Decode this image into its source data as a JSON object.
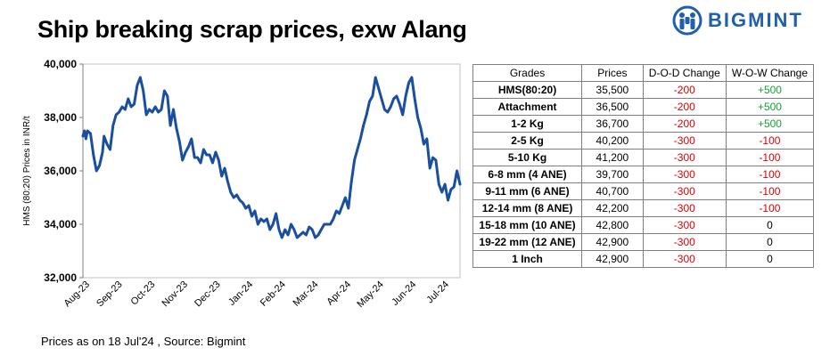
{
  "header": {
    "title": "Ship breaking scrap prices, exw Alang",
    "brand": "BIGMINT"
  },
  "footer": {
    "note": "Prices as on 18 Jul'24 , Source:  Bigmint"
  },
  "colors": {
    "line": "#1a4fa0",
    "brand": "#1f5fae",
    "negative": "#e00000",
    "positive": "#16a03c"
  },
  "chart_data": {
    "type": "line",
    "ylabel": "HMS (80:20) Prices in INR/t",
    "xlabel": "",
    "ylim": [
      32000,
      40000
    ],
    "yticks": [
      "32,000",
      "34,000",
      "36,000",
      "38,000",
      "40,000"
    ],
    "xticks": [
      "Aug-23",
      "Sep-23",
      "Oct-23",
      "Nov-23",
      "Dec-23",
      "Jan-24",
      "Feb-24",
      "Mar-24",
      "Apr-24",
      "May-24",
      "Jun-24",
      "Jul-24"
    ],
    "grid": false,
    "series": [
      {
        "values": [
          [
            0,
            37300
          ],
          [
            0.5,
            37500
          ],
          [
            1,
            37200
          ],
          [
            1.5,
            37500
          ],
          [
            2.5,
            37400
          ],
          [
            3.5,
            36600
          ],
          [
            4.5,
            36000
          ],
          [
            5.5,
            36200
          ],
          [
            6.5,
            36700
          ],
          [
            7,
            37300
          ],
          [
            8,
            37000
          ],
          [
            9,
            36800
          ],
          [
            10,
            37700
          ],
          [
            11,
            38100
          ],
          [
            12,
            38200
          ],
          [
            13,
            38400
          ],
          [
            14,
            38300
          ],
          [
            15,
            38700
          ],
          [
            16,
            38400
          ],
          [
            17,
            38500
          ],
          [
            18,
            39200
          ],
          [
            19,
            39500
          ],
          [
            20,
            39000
          ],
          [
            21,
            38100
          ],
          [
            22,
            38300
          ],
          [
            23,
            38200
          ],
          [
            24,
            38400
          ],
          [
            25,
            38200
          ],
          [
            26,
            38300
          ],
          [
            27,
            39000
          ],
          [
            28,
            38800
          ],
          [
            29,
            37700
          ],
          [
            30,
            38300
          ],
          [
            31,
            37600
          ],
          [
            32,
            37100
          ],
          [
            33,
            36400
          ],
          [
            34,
            36700
          ],
          [
            35,
            36900
          ],
          [
            36,
            37200
          ],
          [
            37,
            36500
          ],
          [
            38,
            36500
          ],
          [
            39,
            36300
          ],
          [
            40,
            36800
          ],
          [
            41,
            36600
          ],
          [
            42,
            36600
          ],
          [
            43,
            36300
          ],
          [
            44,
            36700
          ],
          [
            45,
            36400
          ],
          [
            46,
            35800
          ],
          [
            47,
            36100
          ],
          [
            48,
            35600
          ],
          [
            49,
            35200
          ],
          [
            50,
            35000
          ],
          [
            51,
            35100
          ],
          [
            52,
            34900
          ],
          [
            53,
            34800
          ],
          [
            54,
            34600
          ],
          [
            55,
            34700
          ],
          [
            56,
            34300
          ],
          [
            57,
            34500
          ],
          [
            58,
            34000
          ],
          [
            59,
            34200
          ],
          [
            60,
            34100
          ],
          [
            61,
            34200
          ],
          [
            62,
            33800
          ],
          [
            63,
            34000
          ],
          [
            64,
            34400
          ],
          [
            65,
            33800
          ],
          [
            66,
            33500
          ],
          [
            67,
            33800
          ],
          [
            68,
            33600
          ],
          [
            69,
            34000
          ],
          [
            70,
            33800
          ],
          [
            71,
            33500
          ],
          [
            72,
            33600
          ],
          [
            73,
            33700
          ],
          [
            74,
            33600
          ],
          [
            75,
            33900
          ],
          [
            76,
            33800
          ],
          [
            77,
            33500
          ],
          [
            78,
            33600
          ],
          [
            79,
            33800
          ],
          [
            80,
            34000
          ],
          [
            81,
            34000
          ],
          [
            82,
            34000
          ],
          [
            83,
            34200
          ],
          [
            84,
            34500
          ],
          [
            85,
            34400
          ],
          [
            86,
            34700
          ],
          [
            87,
            35000
          ],
          [
            88,
            34600
          ],
          [
            89,
            35600
          ],
          [
            90,
            36400
          ],
          [
            91,
            36800
          ],
          [
            92,
            37200
          ],
          [
            93,
            37700
          ],
          [
            94,
            38100
          ],
          [
            95,
            38600
          ],
          [
            96,
            38800
          ],
          [
            97,
            39500
          ],
          [
            98,
            39100
          ],
          [
            99,
            38700
          ],
          [
            100,
            38300
          ],
          [
            101,
            38200
          ],
          [
            102,
            38400
          ],
          [
            103,
            38700
          ],
          [
            104,
            38800
          ],
          [
            105,
            38500
          ],
          [
            106,
            38100
          ],
          [
            107,
            38800
          ],
          [
            108,
            39300
          ],
          [
            109,
            39500
          ],
          [
            110,
            38700
          ],
          [
            111,
            38000
          ],
          [
            112,
            37600
          ],
          [
            113,
            37000
          ],
          [
            114,
            37200
          ],
          [
            115,
            36100
          ],
          [
            116,
            36500
          ],
          [
            117,
            36400
          ],
          [
            118,
            35500
          ],
          [
            119,
            35200
          ],
          [
            120,
            35500
          ],
          [
            121,
            34900
          ],
          [
            122,
            35300
          ],
          [
            123,
            35400
          ],
          [
            124,
            36000
          ],
          [
            125,
            35500
          ]
        ]
      }
    ]
  },
  "table": {
    "headers": [
      "Grades",
      "Prices",
      "D-O-D Change",
      "W-O-W Change"
    ],
    "rows": [
      {
        "grade": "HMS(80:20)",
        "price": "35,500",
        "dod": "-200",
        "wow": "+500",
        "wow_sign": "pos"
      },
      {
        "grade": "Attachment",
        "price": "36,500",
        "dod": "-200",
        "wow": "+500",
        "wow_sign": "pos"
      },
      {
        "grade": "1-2 Kg",
        "price": "36,700",
        "dod": "-200",
        "wow": "+500",
        "wow_sign": "pos"
      },
      {
        "grade": "2-5 Kg",
        "price": "40,200",
        "dod": "-300",
        "wow": "-100",
        "wow_sign": "neg"
      },
      {
        "grade": "5-10 Kg",
        "price": "41,200",
        "dod": "-300",
        "wow": "-100",
        "wow_sign": "neg"
      },
      {
        "grade": "6-8 mm (4 ANE)",
        "price": "39,700",
        "dod": "-300",
        "wow": "-100",
        "wow_sign": "neg"
      },
      {
        "grade": "9-11 mm (6 ANE)",
        "price": "40,700",
        "dod": "-300",
        "wow": "-100",
        "wow_sign": "neg"
      },
      {
        "grade": "12-14 mm (8 ANE)",
        "price": "42,200",
        "dod": "-300",
        "wow": "-100",
        "wow_sign": "neg"
      },
      {
        "grade": "15-18 mm (10 ANE)",
        "price": "42,800",
        "dod": "-300",
        "wow": "0",
        "wow_sign": "zero"
      },
      {
        "grade": "19-22 mm (12 ANE)",
        "price": "42,900",
        "dod": "-300",
        "wow": "0",
        "wow_sign": "zero"
      },
      {
        "grade": "1 Inch",
        "price": "42,900",
        "dod": "-300",
        "wow": "0",
        "wow_sign": "zero"
      }
    ]
  }
}
